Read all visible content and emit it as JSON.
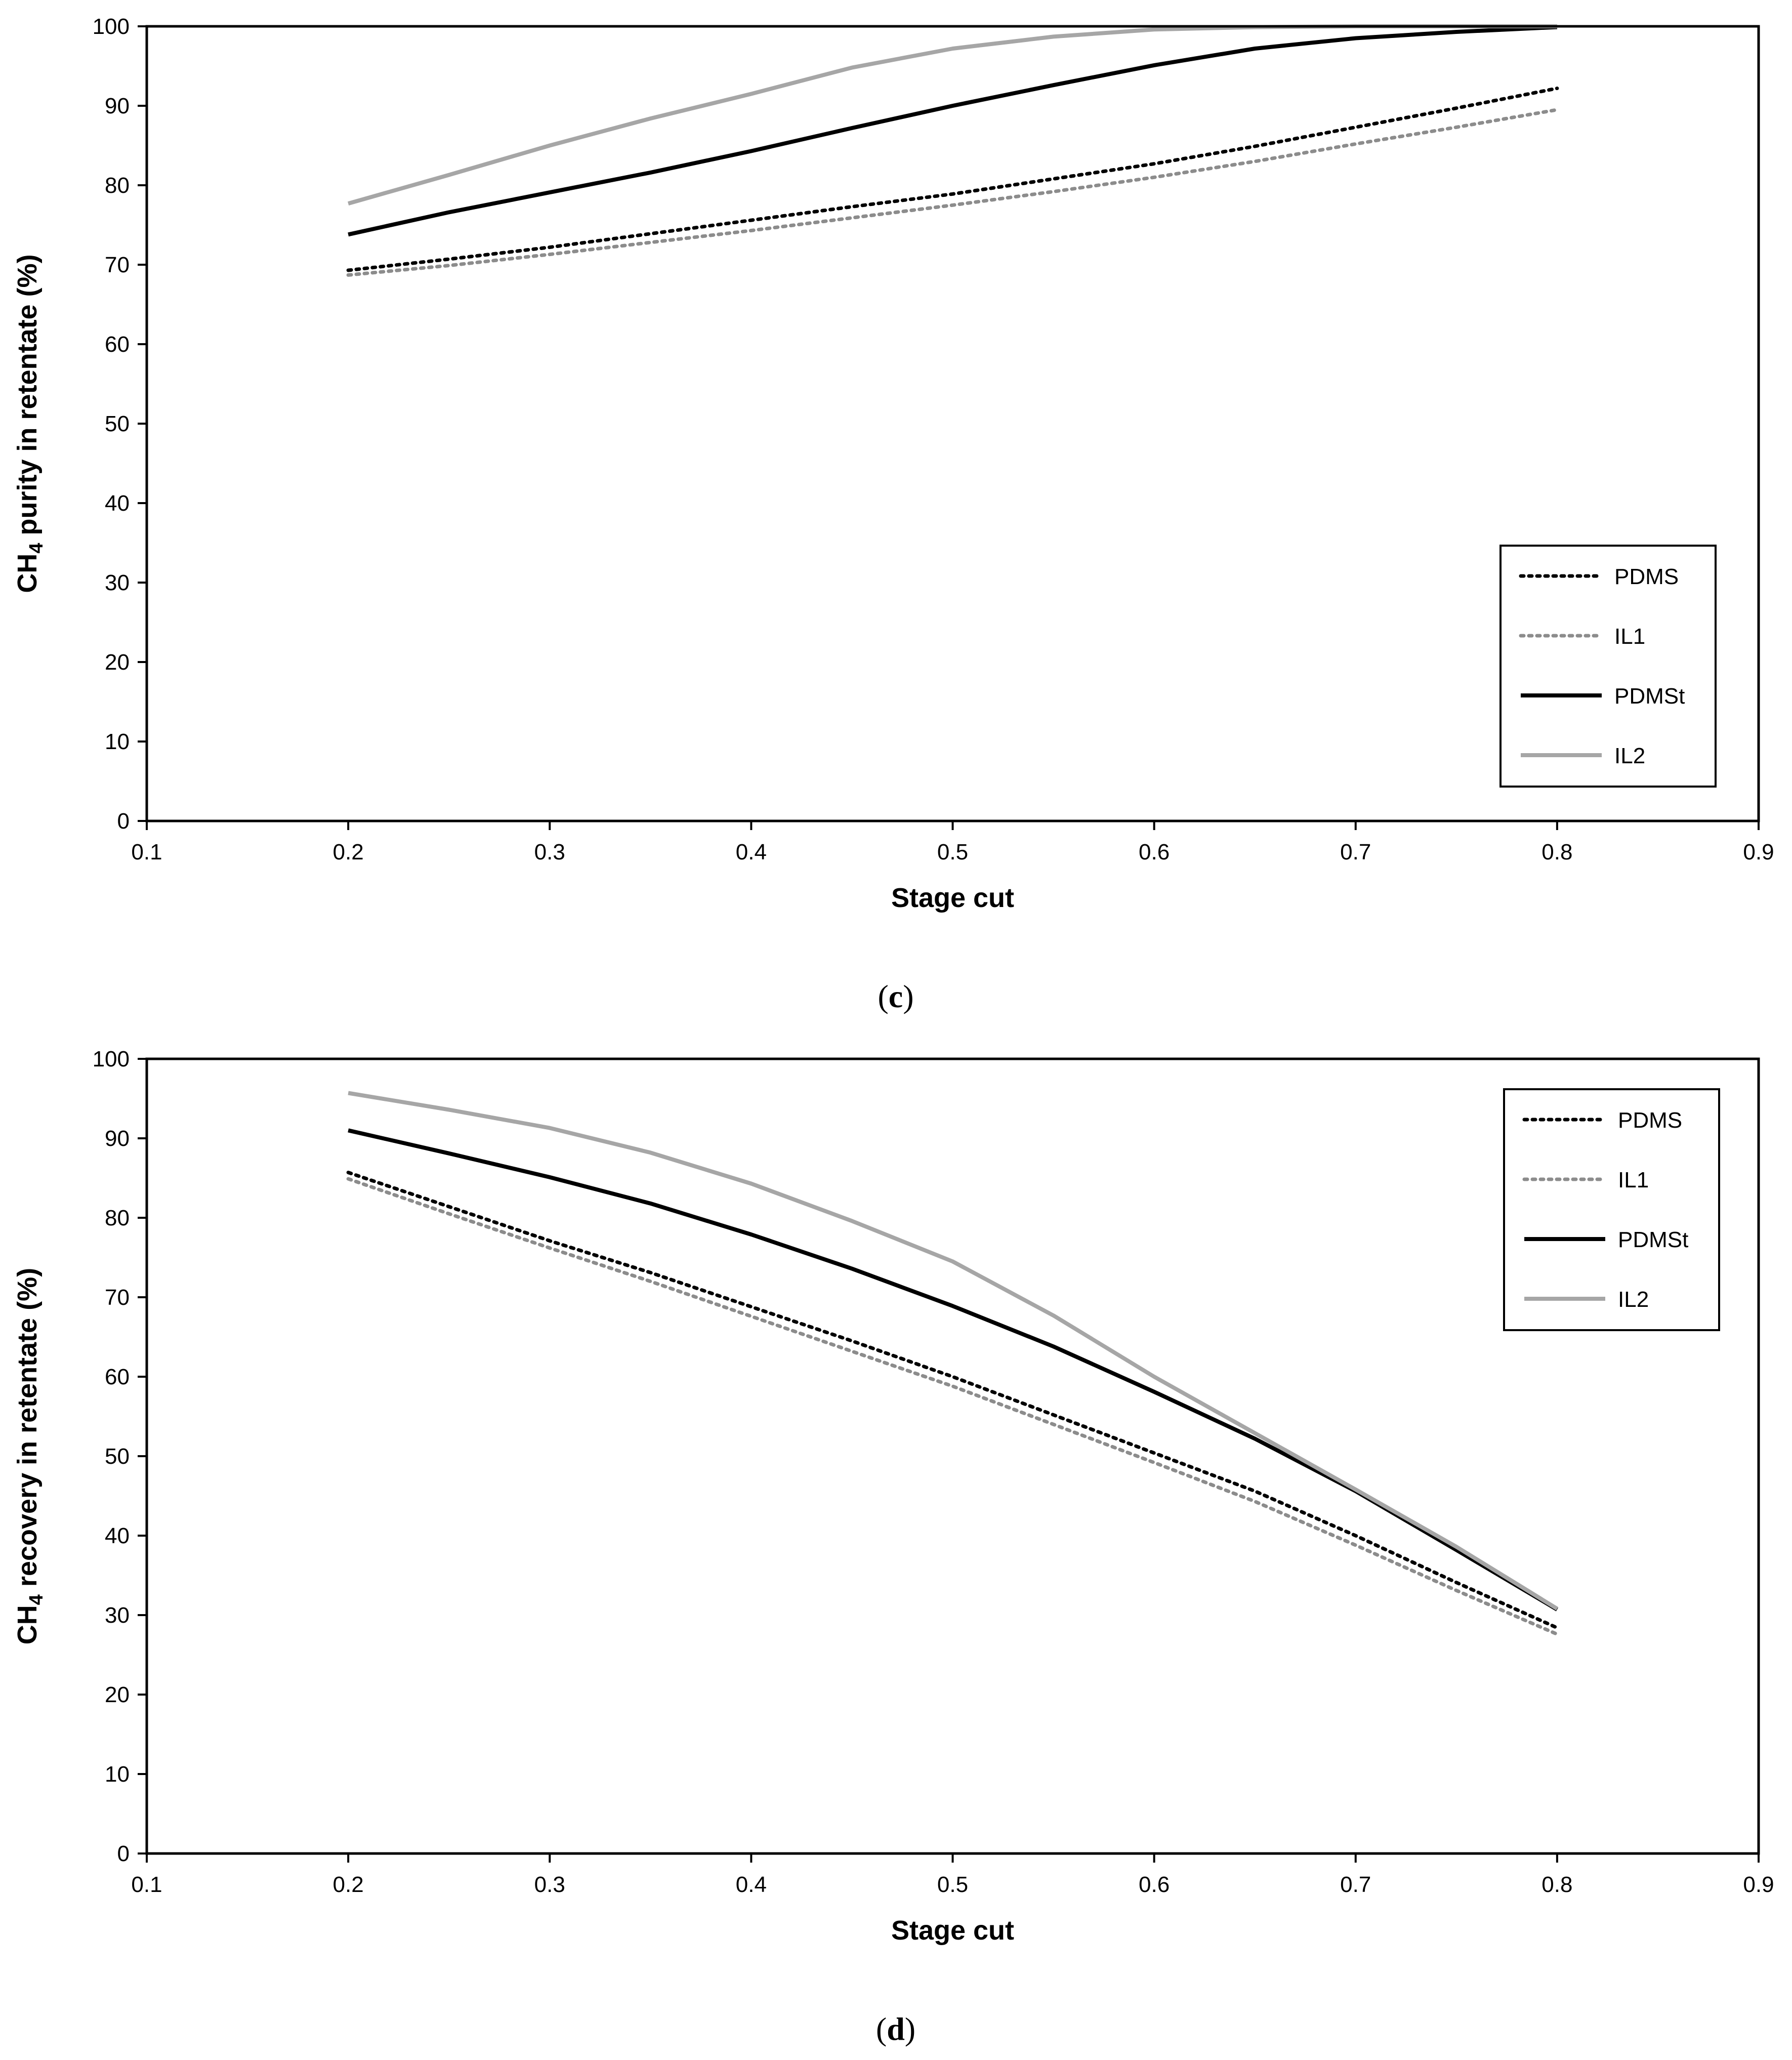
{
  "charts": [
    {
      "id": "c",
      "caption": {
        "open": "(",
        "letter": "c",
        "close": ")"
      },
      "ylabel": {
        "prefix": "CH",
        "subscript": "4",
        "suffix": " purity in retentate (%)"
      },
      "legend_position": "right-lower",
      "chart_data": {
        "type": "line",
        "title": "",
        "xlabel": "Stage cut",
        "ylabel": "CH4 purity in retentate (%)",
        "xlim": [
          0.1,
          0.9
        ],
        "ylim": [
          0,
          100
        ],
        "xticks": [
          "0.1",
          "0.2",
          "0.3",
          "0.4",
          "0.5",
          "0.6",
          "0.7",
          "0.8",
          "0.9"
        ],
        "yticks": [
          "0",
          "10",
          "20",
          "30",
          "40",
          "50",
          "60",
          "70",
          "80",
          "90",
          "100"
        ],
        "grid": false,
        "x": [
          0.2,
          0.25,
          0.3,
          0.35,
          0.4,
          0.45,
          0.5,
          0.55,
          0.6,
          0.65,
          0.7,
          0.75,
          0.8
        ],
        "series": [
          {
            "name": "PDMS",
            "color": "#000000",
            "style": "dotted",
            "values": [
              69.3,
              70.7,
              72.2,
              73.9,
              75.6,
              77.3,
              78.9,
              80.8,
              82.7,
              84.9,
              87.3,
              89.7,
              92.2
            ]
          },
          {
            "name": "IL1",
            "color": "#8c8c8c",
            "style": "dotted",
            "values": [
              68.7,
              69.9,
              71.3,
              72.8,
              74.3,
              75.9,
              77.5,
              79.2,
              81.0,
              83.0,
              85.2,
              87.3,
              89.5
            ]
          },
          {
            "name": "PDMSt",
            "color": "#000000",
            "style": "solid",
            "values": [
              73.8,
              76.6,
              79.1,
              81.6,
              84.3,
              87.2,
              90.0,
              92.6,
              95.1,
              97.2,
              98.5,
              99.3,
              99.9
            ]
          },
          {
            "name": "IL2",
            "color": "#a6a6a6",
            "style": "solid",
            "values": [
              77.7,
              81.3,
              85.0,
              88.4,
              91.5,
              94.8,
              97.2,
              98.7,
              99.6,
              99.9,
              100.0,
              100.0,
              100.0
            ]
          }
        ]
      }
    },
    {
      "id": "d",
      "caption": {
        "open": "(",
        "letter": "d",
        "close": ")"
      },
      "ylabel": {
        "prefix": "CH",
        "subscript": "4",
        "suffix": " recovery in retentate (%)"
      },
      "legend_position": "right-upper",
      "chart_data": {
        "type": "line",
        "title": "",
        "xlabel": "Stage cut",
        "ylabel": "CH4 recovery in retentate (%)",
        "xlim": [
          0.1,
          0.9
        ],
        "ylim": [
          0,
          100
        ],
        "xticks": [
          "0.1",
          "0.2",
          "0.3",
          "0.4",
          "0.5",
          "0.6",
          "0.7",
          "0.8",
          "0.9"
        ],
        "yticks": [
          "0",
          "10",
          "20",
          "30",
          "40",
          "50",
          "60",
          "70",
          "80",
          "90",
          "100"
        ],
        "grid": false,
        "x": [
          0.2,
          0.25,
          0.3,
          0.35,
          0.4,
          0.45,
          0.5,
          0.55,
          0.6,
          0.65,
          0.7,
          0.75,
          0.8
        ],
        "series": [
          {
            "name": "PDMS",
            "color": "#000000",
            "style": "dotted",
            "values": [
              85.7,
              81.4,
              77.1,
              73.1,
              68.8,
              64.5,
              60.0,
              55.2,
              50.4,
              45.6,
              40.0,
              34.1,
              28.4
            ]
          },
          {
            "name": "IL1",
            "color": "#8c8c8c",
            "style": "dotted",
            "values": [
              84.9,
              80.5,
              76.2,
              72.0,
              67.6,
              63.2,
              58.8,
              54.0,
              49.2,
              44.3,
              38.8,
              33.1,
              27.6
            ]
          },
          {
            "name": "PDMSt",
            "color": "#000000",
            "style": "solid",
            "values": [
              91.0,
              88.1,
              85.1,
              81.8,
              77.9,
              73.6,
              68.9,
              63.8,
              58.1,
              52.2,
              45.6,
              38.2,
              30.7
            ]
          },
          {
            "name": "IL2",
            "color": "#a6a6a6",
            "style": "solid",
            "values": [
              95.7,
              93.6,
              91.3,
              88.2,
              84.3,
              79.6,
              74.5,
              67.7,
              60.0,
              52.9,
              45.8,
              38.6,
              30.8
            ]
          }
        ]
      }
    }
  ]
}
